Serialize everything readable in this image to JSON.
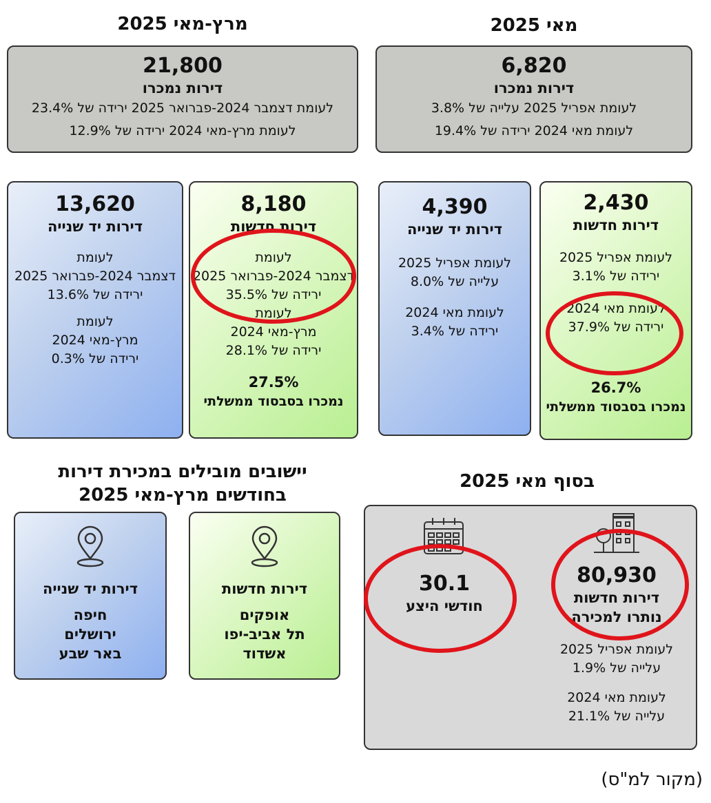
{
  "headings": {
    "may_2025": "מאי 2025",
    "mar_may_2025": "מרץ-מאי 2025",
    "end_may_2025": "בסוף מאי 2025",
    "leading_towns": [
      "יישובים מובילים במכירת דירות",
      "בחודשים מרץ-מאי 2025"
    ]
  },
  "may_total": {
    "value": "6,820",
    "label": "דירות נמכרו",
    "lines": [
      "לעומת אפריל 2025 עלייה של 3.8%",
      "לעומת מאי 2024 ירידה של 19.4%"
    ]
  },
  "marmay_total": {
    "value": "21,800",
    "label": "דירות נמכרו",
    "lines": [
      "לעומת דצמבר 2024-פברואר 2025 ירידה של 23.4%",
      "לעומת מרץ-מאי 2024 ירידה של 12.9%"
    ]
  },
  "may_new": {
    "value": "2,430",
    "label": "דירות חדשות",
    "group1": [
      "לעומת אפריל 2025",
      "ירידה של 3.1%"
    ],
    "group2": [
      "לעומת מאי 2024",
      "ירידה של 37.9%"
    ],
    "subsidy_pct": "26.7%",
    "subsidy_label": "נמכרו בסבסוד ממשלתי"
  },
  "may_second": {
    "value": "4,390",
    "label": "דירות יד שנייה",
    "group1": [
      "לעומת אפריל 2025",
      "עלייה של 8.0%"
    ],
    "group2": [
      "לעומת מאי 2024",
      "ירידה של 3.4%"
    ]
  },
  "marmay_new": {
    "value": "8,180",
    "label": "דירות חדשות",
    "group1": [
      "לעומת",
      "דצמבר 2024-פברואר 2025",
      "ירידה של 35.5%"
    ],
    "group2": [
      "לעומת",
      "מרץ-מאי 2024",
      "ירידה של 28.1%"
    ],
    "subsidy_pct": "27.5%",
    "subsidy_label": "נמכרו בסבסוד ממשלתי"
  },
  "marmay_second": {
    "value": "13,620",
    "label": "דירות יד שנייה",
    "group1": [
      "לעומת",
      "דצמבר 2024-פברואר 2025",
      "ירידה של 13.6%"
    ],
    "group2": [
      "לעומת",
      "מרץ-מאי 2024",
      "ירידה של 0.3%"
    ]
  },
  "end_may": {
    "unsold_value": "80,930",
    "unsold_label": [
      "דירות חדשות",
      "נותרו למכירה"
    ],
    "unsold_group1": [
      "לעומת אפריל 2025",
      "עלייה של 1.9%"
    ],
    "unsold_group2": [
      "לעומת מאי 2024",
      "עלייה של 21.1%"
    ],
    "months_value": "30.1",
    "months_label": "חודשי היצע"
  },
  "towns_new": {
    "label": "דירות חדשות",
    "towns": [
      "אופקים",
      "תל אביב-יפו",
      "אשדוד"
    ]
  },
  "towns_second": {
    "label": "דירות יד שנייה",
    "towns": [
      "חיפה",
      "ירושלים",
      "באר שבע"
    ]
  },
  "source": "(מקור למ\"ס)",
  "icons": [
    "location-pin-icon",
    "calendar-icon",
    "buildings-icon"
  ],
  "colors": {
    "highlight": "#e0141b",
    "green_box": "#c9f2a8",
    "blue_box": "#a9c2f0",
    "grey_box": "#c8c8c4"
  }
}
